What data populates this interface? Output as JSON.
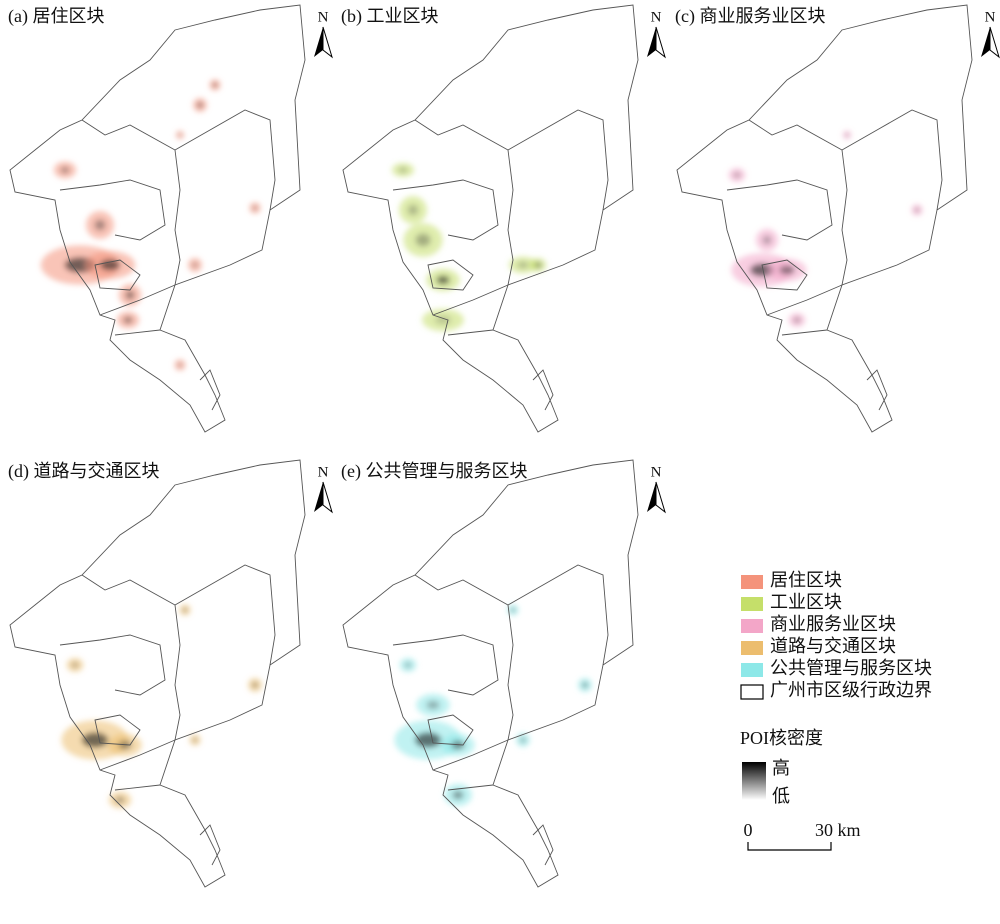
{
  "panels": [
    {
      "label": "(a) 居住区块",
      "north": "N"
    },
    {
      "label": "(b) 工业区块",
      "north": "N"
    },
    {
      "label": "(c) 商业服务业区块",
      "north": "N"
    },
    {
      "label": "(d) 道路与交通区块",
      "north": "N"
    },
    {
      "label": "(e) 公共管理与服务区块",
      "north": "N"
    }
  ],
  "legend": {
    "items": [
      {
        "label": "居住区块",
        "color": "#f4937b"
      },
      {
        "label": "工业区块",
        "color": "#c5df6a"
      },
      {
        "label": "商业服务业区块",
        "color": "#f3a6c8"
      },
      {
        "label": "道路与交通区块",
        "color": "#ecbd6e"
      },
      {
        "label": "公共管理与服务区块",
        "color": "#8de8e8"
      },
      {
        "label": "广州市区级行政边界",
        "color": "none"
      }
    ],
    "density": {
      "title": "POI核密度",
      "high": "高",
      "low": "低"
    },
    "scale_bar": {
      "start": "0",
      "end": "30 km"
    }
  }
}
